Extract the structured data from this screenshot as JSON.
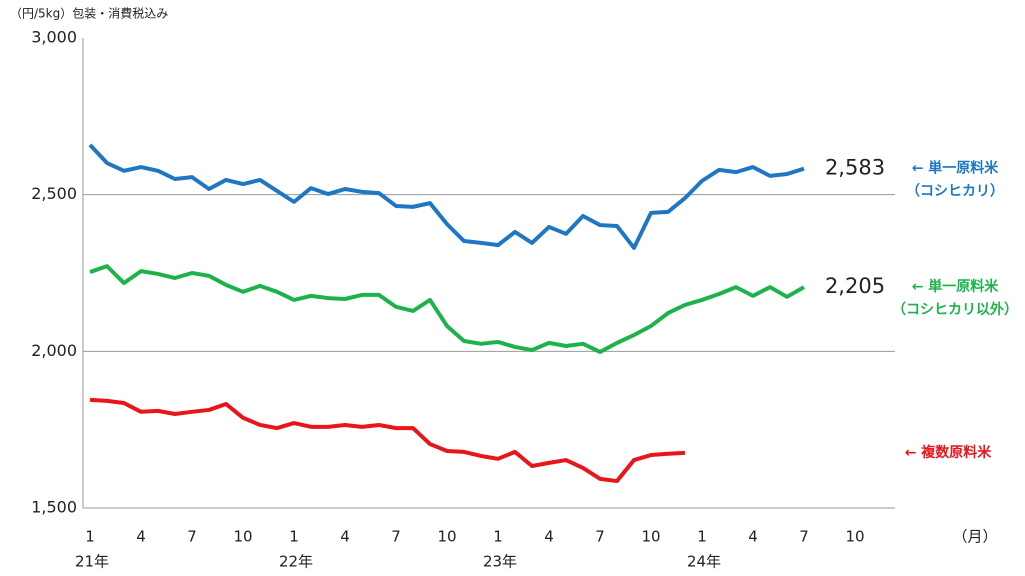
{
  "chart_data": {
    "type": "line",
    "unit_label": "（円/5kg）包装・消費税込み",
    "x_unit_label": "（月）",
    "categories": [
      "1",
      null,
      null,
      "4",
      null,
      null,
      "7",
      null,
      null,
      "10",
      null,
      null,
      "1",
      null,
      null,
      "4",
      null,
      null,
      "7",
      null,
      null,
      "10",
      null,
      null,
      "1",
      null,
      null,
      "4",
      null,
      null,
      "7",
      null,
      null,
      "10",
      null,
      null,
      "1",
      null,
      null,
      "4",
      null,
      null,
      "7",
      null,
      null,
      "10",
      null,
      null
    ],
    "year_labels": [
      "21年",
      "22年",
      "23年",
      "24年"
    ],
    "ylim": [
      1500,
      3000
    ],
    "yticks": [
      {
        "value": 1500,
        "label": "1,500"
      },
      {
        "value": 2000,
        "label": "2,000"
      },
      {
        "value": 2500,
        "label": "2,500"
      },
      {
        "value": 3000,
        "label": "3,000"
      }
    ],
    "grid": true,
    "series": [
      {
        "name_lines": [
          "← 単一原料米",
          "（コシヒカリ）"
        ],
        "color": "#1f77c4",
        "values": [
          2659,
          2601,
          2576,
          2588,
          2576,
          2550,
          2556,
          2518,
          2547,
          2534,
          2547,
          2512,
          2477,
          2521,
          2502,
          2518,
          2509,
          2505,
          2464,
          2461,
          2473,
          2406,
          2352,
          2346,
          2339,
          2381,
          2346,
          2397,
          2375,
          2432,
          2403,
          2400,
          2330,
          2442,
          2445,
          2489,
          2544,
          2579,
          2572,
          2588,
          2560,
          2566,
          2583,
          null,
          null,
          null,
          null,
          null
        ],
        "value_labels": [
          null,
          null,
          null,
          null,
          null,
          null,
          null,
          null,
          null,
          null,
          null,
          null,
          null,
          null,
          null,
          null,
          null,
          null,
          null,
          null,
          null,
          null,
          null,
          null,
          null,
          null,
          null,
          null,
          null,
          null,
          null,
          null,
          null,
          null,
          null,
          null,
          null,
          null,
          null,
          null,
          null,
          null,
          "2,583",
          null,
          null,
          null,
          null,
          null
        ]
      },
      {
        "name_lines": [
          "← 単一原料米",
          "（コシヒカリ以外）"
        ],
        "color": "#1db34a",
        "values": [
          2253,
          2272,
          2218,
          2256,
          2247,
          2234,
          2250,
          2241,
          2212,
          2190,
          2209,
          2190,
          2164,
          2177,
          2170,
          2167,
          2180,
          2180,
          2142,
          2129,
          2164,
          2081,
          2033,
          2024,
          2030,
          2014,
          2004,
          2027,
          2017,
          2024,
          1998,
          2027,
          2052,
          2081,
          2122,
          2148,
          2164,
          2183,
          2205,
          2177,
          2205,
          2174,
          2205,
          null,
          null,
          null,
          null,
          null
        ],
        "value_labels": [
          null,
          null,
          null,
          null,
          null,
          null,
          null,
          null,
          null,
          null,
          null,
          null,
          null,
          null,
          null,
          null,
          null,
          null,
          null,
          null,
          null,
          null,
          null,
          null,
          null,
          null,
          null,
          null,
          null,
          null,
          null,
          null,
          null,
          null,
          null,
          null,
          null,
          null,
          null,
          null,
          null,
          null,
          "2,205",
          null,
          null,
          null,
          null,
          null
        ]
      },
      {
        "name_lines": [
          "← 複数原料米"
        ],
        "color": "#e8151b",
        "values": [
          1845,
          1842,
          1835,
          1807,
          1810,
          1800,
          1807,
          1813,
          1832,
          1788,
          1765,
          1755,
          1771,
          1759,
          1759,
          1765,
          1759,
          1765,
          1755,
          1755,
          1704,
          1682,
          1679,
          1666,
          1657,
          1679,
          1634,
          1644,
          1653,
          1628,
          1593,
          1586,
          1653,
          1669,
          1673,
          1676,
          null,
          null,
          null,
          null,
          null,
          null,
          null,
          null,
          null,
          null,
          null,
          null
        ]
      }
    ]
  }
}
